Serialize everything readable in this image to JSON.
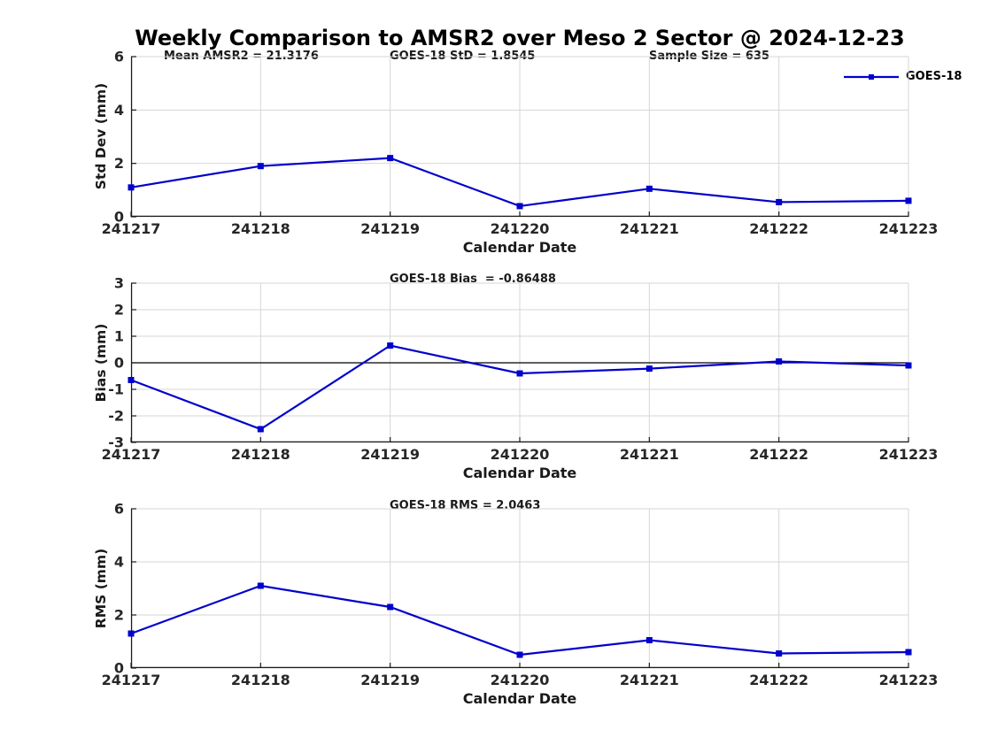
{
  "figure": {
    "title": "Weekly Comparison to AMSR2 over Meso 2 Sector @ 2024-12-23"
  },
  "legend": {
    "label": "GOES-18"
  },
  "colors": {
    "series": "#0000cc",
    "grid": "#d6d6d6",
    "axis": "#1a1a1a",
    "tick_text": "#262626",
    "zero_line": "#000000"
  },
  "chart_data": [
    {
      "type": "line",
      "panel": "std-dev",
      "annotations": [
        {
          "text": "Mean AMSR2 = 21.3176"
        },
        {
          "text": "GOES-18 StD = 1.8545"
        },
        {
          "text": "Sample Size = 635"
        }
      ],
      "ylabel": "Std Dev (mm)",
      "xlabel": "Calendar Date",
      "categories": [
        "241217",
        "241218",
        "241219",
        "241220",
        "241221",
        "241222",
        "241223"
      ],
      "series": [
        {
          "name": "GOES-18",
          "values": [
            1.1,
            1.9,
            2.2,
            0.4,
            1.05,
            0.55,
            0.6
          ]
        }
      ],
      "ylim": [
        0,
        6
      ],
      "yticks": [
        0,
        2,
        4,
        6
      ],
      "grid": true,
      "zero_line": false,
      "marker": "square"
    },
    {
      "type": "line",
      "panel": "bias",
      "annotations": [
        {
          "text": "GOES-18 Bias  = -0.86488"
        }
      ],
      "ylabel": "Bias (mm)",
      "xlabel": "Calendar Date",
      "categories": [
        "241217",
        "241218",
        "241219",
        "241220",
        "241221",
        "241222",
        "241223"
      ],
      "series": [
        {
          "name": "GOES-18",
          "values": [
            -0.65,
            -2.5,
            0.65,
            -0.4,
            -0.22,
            0.05,
            -0.1
          ]
        }
      ],
      "ylim": [
        -3,
        3
      ],
      "yticks": [
        -3,
        -2,
        -1,
        0,
        1,
        2,
        3
      ],
      "grid": true,
      "zero_line": true,
      "marker": "square"
    },
    {
      "type": "line",
      "panel": "rms",
      "annotations": [
        {
          "text": "GOES-18 RMS = 2.0463"
        }
      ],
      "ylabel": "RMS (mm)",
      "xlabel": "Calendar Date",
      "categories": [
        "241217",
        "241218",
        "241219",
        "241220",
        "241221",
        "241222",
        "241223"
      ],
      "series": [
        {
          "name": "GOES-18",
          "values": [
            1.3,
            3.1,
            2.3,
            0.5,
            1.05,
            0.55,
            0.6
          ]
        }
      ],
      "ylim": [
        0,
        6
      ],
      "yticks": [
        0,
        2,
        4,
        6
      ],
      "grid": true,
      "zero_line": false,
      "marker": "square"
    }
  ]
}
